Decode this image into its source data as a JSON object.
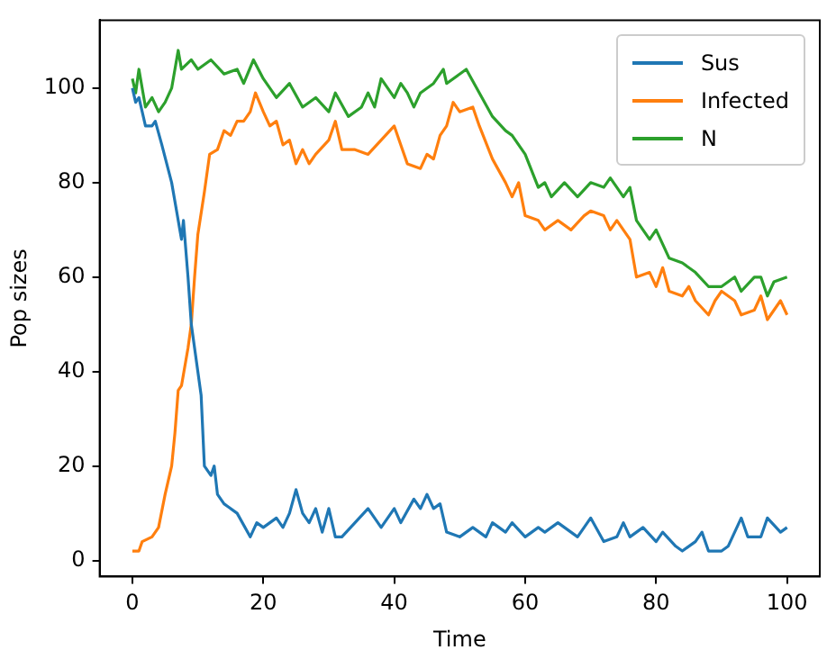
{
  "chart_data": {
    "type": "line",
    "xlabel": "Time",
    "ylabel": "Pop sizes",
    "xlim": [
      -5,
      105
    ],
    "xticks": [
      0,
      20,
      40,
      60,
      80,
      100
    ],
    "ylim": [
      -3.4,
      114.4
    ],
    "yticks": [
      0,
      20,
      40,
      60,
      80,
      100
    ],
    "grid": false,
    "legend": "top right",
    "marker": "none",
    "line_style": "solid",
    "series": [
      {
        "name": "Sus",
        "color": "#1f77b4",
        "x": [
          0,
          0.5,
          1,
          2,
          3,
          3.5,
          4.5,
          6,
          7,
          7.5,
          7.8,
          8.5,
          9,
          10,
          10.5,
          11,
          12,
          12.5,
          13,
          14,
          16,
          18,
          19,
          20,
          22,
          23,
          24,
          25,
          26,
          27,
          28,
          29,
          30,
          31,
          32,
          34,
          36,
          38,
          40,
          41,
          43,
          44,
          45,
          46,
          47,
          48,
          50,
          52,
          54,
          55,
          57,
          58,
          60,
          62,
          63,
          65,
          67,
          68,
          70,
          72,
          74,
          75,
          76,
          78,
          80,
          81,
          83,
          84,
          86,
          87,
          88,
          90,
          91,
          93,
          94,
          96,
          97,
          99,
          100
        ],
        "values": [
          100,
          97,
          98,
          92,
          92,
          93,
          88,
          80,
          72,
          68,
          72,
          60,
          50,
          40,
          35,
          20,
          18,
          20,
          14,
          12,
          10,
          5,
          8,
          7,
          9,
          7,
          10,
          15,
          10,
          8,
          11,
          6,
          11,
          5,
          5,
          8,
          11,
          7,
          11,
          8,
          13,
          11,
          14,
          11,
          12,
          6,
          5,
          7,
          5,
          8,
          6,
          8,
          5,
          7,
          6,
          8,
          6,
          5,
          9,
          4,
          5,
          8,
          5,
          7,
          4,
          6,
          3,
          2,
          4,
          6,
          2,
          2,
          3,
          9,
          5,
          5,
          9,
          6,
          7
        ]
      },
      {
        "name": "Infected",
        "color": "#ff7f0e",
        "x": [
          0,
          1,
          1.5,
          3,
          4,
          5,
          6,
          6.5,
          7,
          7.5,
          8.5,
          9,
          9.5,
          10,
          11,
          11.8,
          13,
          14,
          15,
          16,
          17,
          18,
          18.8,
          20,
          21,
          22,
          23,
          24,
          25,
          26,
          27,
          28,
          30,
          31,
          32,
          34,
          36,
          38,
          40,
          41,
          42,
          44,
          45,
          46,
          47,
          48,
          49,
          50,
          52,
          53,
          55,
          57,
          58,
          59,
          60,
          62,
          63,
          65,
          67,
          69,
          70,
          72,
          73,
          74,
          75,
          76,
          77,
          79,
          80,
          81,
          82,
          84,
          85,
          86,
          88,
          89,
          90,
          92,
          93,
          95,
          96,
          97,
          99,
          100
        ],
        "values": [
          2,
          2,
          4,
          5,
          7,
          14,
          20,
          27,
          36,
          37,
          45,
          50,
          60,
          69,
          78,
          86,
          87,
          91,
          90,
          93,
          93,
          95,
          99,
          95,
          92,
          93,
          88,
          89,
          84,
          87,
          84,
          86,
          89,
          93,
          87,
          87,
          86,
          89,
          92,
          88,
          84,
          83,
          86,
          85,
          90,
          92,
          97,
          95,
          96,
          92,
          85,
          80,
          77,
          80,
          73,
          72,
          70,
          72,
          70,
          73,
          74,
          73,
          70,
          72,
          70,
          68,
          60,
          61,
          58,
          62,
          57,
          56,
          58,
          55,
          52,
          55,
          57,
          55,
          52,
          53,
          56,
          51,
          55,
          52
        ]
      },
      {
        "name": "N",
        "color": "#2ca02c",
        "x": [
          0,
          0.5,
          1,
          2,
          3,
          4,
          5,
          6,
          7,
          7.5,
          9,
          10,
          12,
          14,
          16,
          17,
          18.5,
          20,
          22,
          24,
          26,
          28,
          30,
          31,
          33,
          35,
          36,
          37,
          38,
          40,
          41,
          42,
          43,
          44,
          46,
          47.5,
          48,
          50,
          51,
          53,
          55,
          57,
          58,
          60,
          62,
          63,
          64,
          66,
          68,
          70,
          72,
          73,
          75,
          76,
          77,
          78,
          79,
          80,
          82,
          84,
          86,
          88,
          90,
          92,
          93,
          95,
          96,
          97,
          98,
          100
        ],
        "values": [
          102,
          99,
          104,
          96,
          98,
          95,
          97,
          100,
          108,
          104,
          106,
          104,
          106,
          103,
          104,
          101,
          106,
          102,
          98,
          101,
          96,
          98,
          95,
          99,
          94,
          96,
          99,
          96,
          102,
          98,
          101,
          99,
          96,
          99,
          101,
          104,
          101,
          103,
          104,
          99,
          94,
          91,
          90,
          86,
          79,
          80,
          77,
          80,
          77,
          80,
          79,
          81,
          77,
          79,
          72,
          70,
          68,
          70,
          64,
          63,
          61,
          58,
          58,
          60,
          57,
          60,
          60,
          56,
          59,
          60
        ]
      }
    ]
  }
}
